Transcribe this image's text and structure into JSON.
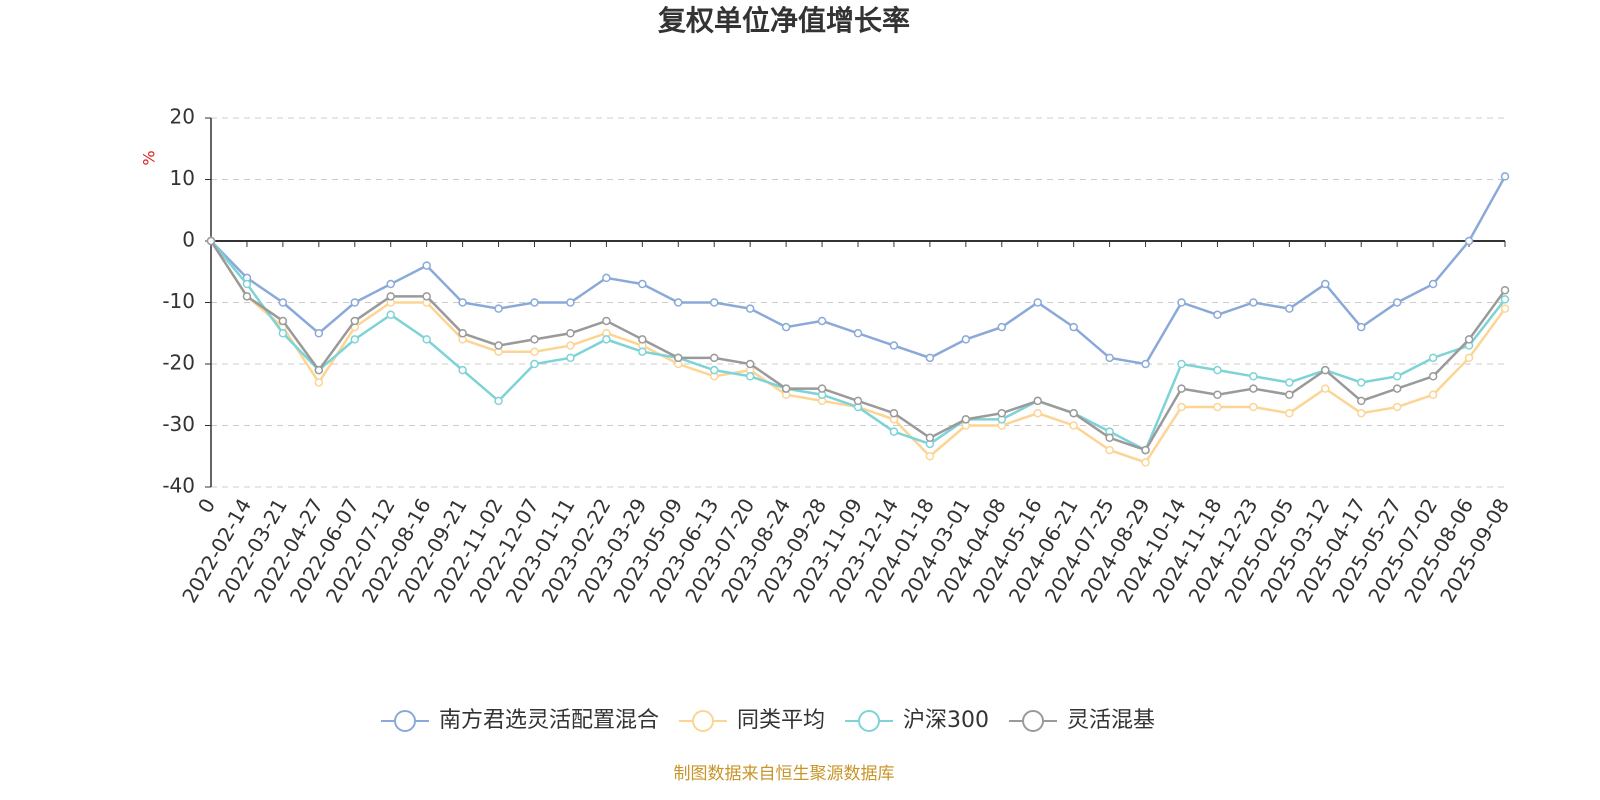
{
  "chart_data": {
    "type": "line",
    "title": "复权单位净值增长率",
    "y_label": "%",
    "source": "制图数据来自恒生聚源数据库",
    "categories": [
      "0",
      "2022-02-14",
      "2022-03-21",
      "2022-04-27",
      "2022-06-07",
      "2022-07-12",
      "2022-08-16",
      "2022-09-21",
      "2022-11-02",
      "2022-12-07",
      "2023-01-11",
      "2023-02-22",
      "2023-03-29",
      "2023-05-09",
      "2023-06-13",
      "2023-07-20",
      "2023-08-24",
      "2023-09-28",
      "2023-11-09",
      "2023-12-14",
      "2024-01-18",
      "2024-03-01",
      "2024-04-08",
      "2024-05-16",
      "2024-06-21",
      "2024-07-25",
      "2024-08-29",
      "2024-10-14",
      "2024-11-18",
      "2024-12-23",
      "2025-02-05",
      "2025-03-12",
      "2025-04-17",
      "2025-05-27",
      "2025-07-02",
      "2025-08-06",
      "2025-09-08"
    ],
    "series": [
      {
        "name": "南方君选灵活配置混合",
        "color": "#8aa9d9",
        "values": [
          0,
          -6,
          -10,
          -15,
          -10,
          -7,
          -4,
          -10,
          -11,
          -10,
          -10,
          -6,
          -7,
          -10,
          -10,
          -11,
          -14,
          -13,
          -15,
          -17,
          -19,
          -16,
          -14,
          -10,
          -14,
          -19,
          -20,
          -10,
          -12,
          -10,
          -11,
          -7,
          -14,
          -10,
          -7,
          0,
          10.5
        ]
      },
      {
        "name": "同类平均",
        "color": "#fcd594",
        "values": [
          0,
          -9,
          -14,
          -23,
          -14,
          -10,
          -10,
          -16,
          -18,
          -18,
          -17,
          -15,
          -17,
          -20,
          -22,
          -21,
          -25,
          -26,
          -27,
          -29,
          -35,
          -30,
          -30,
          -28,
          -30,
          -34,
          -36,
          -27,
          -27,
          -27,
          -28,
          -24,
          -28,
          -27,
          -25,
          -19,
          -11
        ]
      },
      {
        "name": "沪深300",
        "color": "#7ed3d6",
        "values": [
          0,
          -7,
          -15,
          -21,
          -16,
          -12,
          -16,
          -21,
          -26,
          -20,
          -19,
          -16,
          -18,
          -19,
          -21,
          -22,
          -24,
          -25,
          -27,
          -31,
          -33,
          -29,
          -29,
          -26,
          -28,
          -31,
          -34,
          -20,
          -21,
          -22,
          -23,
          -21,
          -23,
          -22,
          -19,
          -17,
          -9.5
        ]
      },
      {
        "name": "灵活混基",
        "color": "#9a9a9a",
        "values": [
          0,
          -9,
          -13,
          -21,
          -13,
          -9,
          -9,
          -15,
          -17,
          -16,
          -15,
          -13,
          -16,
          -19,
          -19,
          -20,
          -24,
          -24,
          -26,
          -28,
          -32,
          -29,
          -28,
          -26,
          -28,
          -32,
          -34,
          -24,
          -25,
          -24,
          -25,
          -21,
          -26,
          -24,
          -22,
          -16,
          -8
        ]
      }
    ],
    "ylim": [
      -40,
      20
    ],
    "yticks": [
      -40,
      -30,
      -20,
      -10,
      0,
      10,
      20
    ],
    "grid": true,
    "legend": "bottom"
  }
}
